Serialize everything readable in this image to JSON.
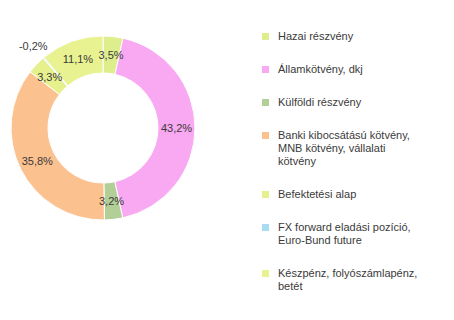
{
  "chart_data": {
    "type": "donut",
    "categories": [
      "Hazai részvény",
      "Államkötvény, dkj",
      "Külföldi részvény",
      "Banki kibocsátású kötvény, MNB kötvény, vállalati kötvény",
      "Befektetési alap",
      "FX forward eladási pozíció, Euro-Bund future",
      "Készpénz, folyószámlapénz, betét"
    ],
    "values": [
      3.5,
      43.2,
      3.2,
      35.8,
      3.3,
      -0.2,
      11.1
    ],
    "value_labels": [
      "3,5%",
      "43,2%",
      "3,2%",
      "35,8%",
      "3,3%",
      "-0,2%",
      "11,1%"
    ],
    "colors": [
      "#dfee8c",
      "#f8a9f1",
      "#b2cf98",
      "#fbc18f",
      "#e6f08c",
      "#a9dcf2",
      "#e9f291"
    ],
    "data_labels": true,
    "legend": "right"
  }
}
